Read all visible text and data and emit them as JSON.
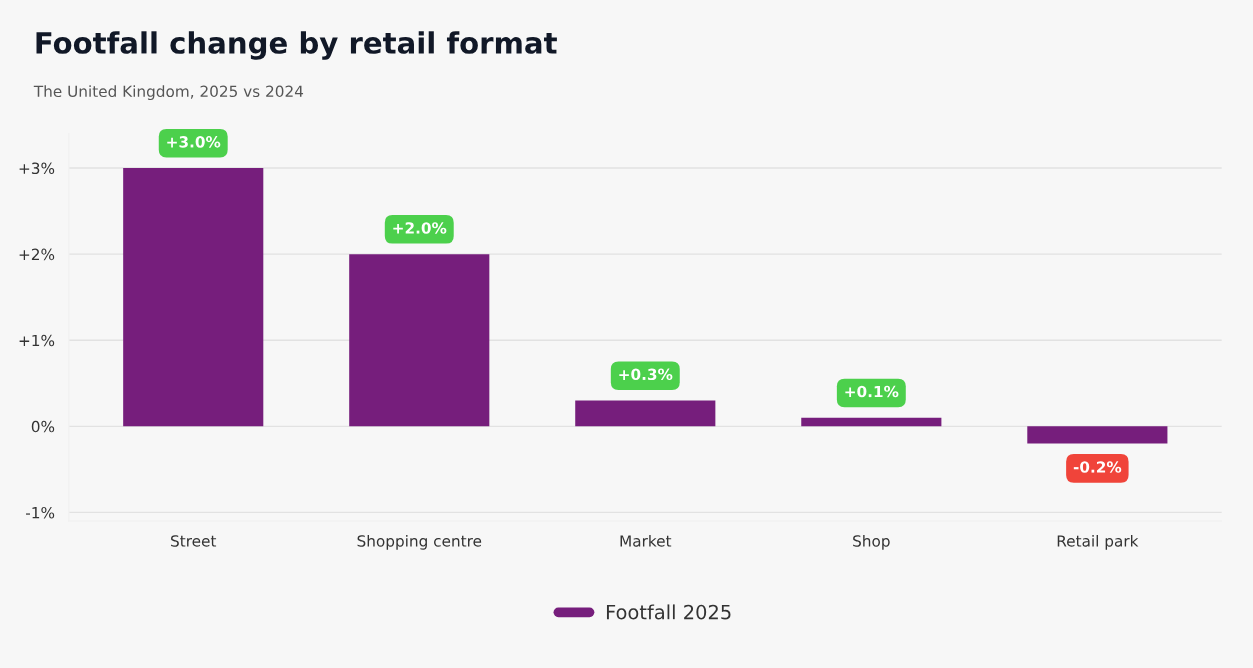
{
  "chart_data": {
    "type": "bar",
    "title": "Footfall change by retail format",
    "subtitle": "The United Kingdom, 2025 vs 2024",
    "categories": [
      "Street",
      "Shopping centre",
      "Market",
      "Shop",
      "Retail park"
    ],
    "series": [
      {
        "name": "Footfall 2025",
        "color": "#761e7c",
        "values": [
          3.0,
          2.0,
          0.3,
          0.1,
          -0.2
        ],
        "value_labels": [
          "+3.0%",
          "+2.0%",
          "+0.3%",
          "+0.1%",
          "-0.2%"
        ]
      }
    ],
    "ylim": [
      -1.1,
      3.4
    ],
    "yticks": [
      {
        "value": -1,
        "label": "-1%"
      },
      {
        "value": 0,
        "label": "0%"
      },
      {
        "value": 1,
        "label": "+1%"
      },
      {
        "value": 2,
        "label": "+2%"
      },
      {
        "value": 3,
        "label": "+3%"
      }
    ],
    "grid": "y",
    "legend": "bottom"
  }
}
